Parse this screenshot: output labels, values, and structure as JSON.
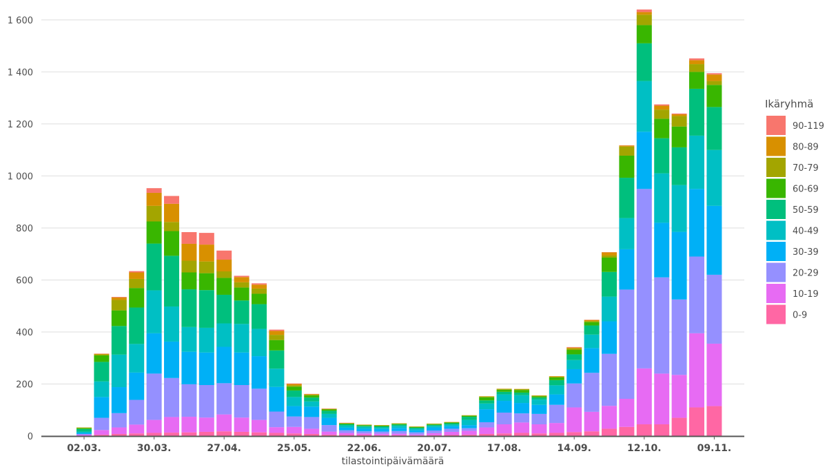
{
  "chart_data": {
    "type": "bar",
    "stacked": true,
    "xlabel": "tilastointipäivämäärä",
    "ylabel": "",
    "ylim": [
      0,
      1650
    ],
    "y_ticks": [
      0,
      200,
      400,
      600,
      800,
      1000,
      1200,
      1400,
      1600
    ],
    "y_tick_labels": [
      "0",
      "200",
      "400",
      "600",
      "800",
      "1 000",
      "1 200",
      "1 400",
      "1 600"
    ],
    "x_ticks": [
      {
        "label": "02.03.",
        "category_index": 0
      },
      {
        "label": "30.03.",
        "category_index": 4
      },
      {
        "label": "27.04.",
        "category_index": 8
      },
      {
        "label": "25.05.",
        "category_index": 12
      },
      {
        "label": "22.06.",
        "category_index": 16
      },
      {
        "label": "20.07.",
        "category_index": 20
      },
      {
        "label": "17.08.",
        "category_index": 24
      },
      {
        "label": "14.09.",
        "category_index": 28
      },
      {
        "label": "12.10.",
        "category_index": 32
      },
      {
        "label": "09.11.",
        "category_index": 36
      }
    ],
    "grid": true,
    "legend": {
      "title": "Ikäryhmä",
      "placement": "right"
    },
    "categories": [
      "02.03.",
      "09.03.",
      "16.03.",
      "23.03.",
      "30.03.",
      "06.04.",
      "13.04.",
      "20.04.",
      "27.04.",
      "04.05.",
      "11.05.",
      "18.05.",
      "25.05.",
      "01.06.",
      "08.06.",
      "15.06.",
      "22.06.",
      "29.06.",
      "06.07.",
      "13.07.",
      "20.07.",
      "27.07.",
      "03.08.",
      "10.08.",
      "17.08.",
      "24.08.",
      "31.08.",
      "07.09.",
      "14.09.",
      "21.09.",
      "28.09.",
      "05.10.",
      "12.10.",
      "19.10.",
      "26.10.",
      "02.11.",
      "09.11."
    ],
    "series": [
      {
        "name": "0-9",
        "color": "#ff67a4",
        "values": [
          1,
          5,
          8,
          10,
          12,
          13,
          14,
          16,
          18,
          16,
          14,
          12,
          10,
          8,
          5,
          4,
          4,
          3,
          3,
          2,
          3,
          4,
          5,
          8,
          10,
          12,
          10,
          12,
          15,
          18,
          28,
          35,
          45,
          45,
          70,
          110,
          115
        ]
      },
      {
        "name": "10-19",
        "color": "#e76bf3",
        "values": [
          3,
          18,
          25,
          34,
          50,
          60,
          60,
          55,
          65,
          55,
          48,
          22,
          25,
          20,
          12,
          8,
          6,
          6,
          6,
          4,
          8,
          12,
          15,
          25,
          35,
          40,
          35,
          38,
          95,
          75,
          88,
          108,
          215,
          195,
          165,
          285,
          240
        ]
      },
      {
        "name": "20-29",
        "color": "#9590ff",
        "values": [
          4,
          47,
          55,
          95,
          178,
          150,
          125,
          125,
          120,
          125,
          120,
          60,
          40,
          45,
          25,
          10,
          8,
          8,
          10,
          8,
          10,
          12,
          10,
          20,
          45,
          35,
          40,
          70,
          92,
          150,
          200,
          420,
          690,
          370,
          290,
          295,
          265
        ]
      },
      {
        "name": "30-39",
        "color": "#00b0f6",
        "values": [
          4,
          80,
          100,
          105,
          155,
          140,
          125,
          125,
          140,
          125,
          125,
          95,
          40,
          40,
          28,
          10,
          10,
          10,
          12,
          8,
          12,
          10,
          12,
          50,
          45,
          40,
          35,
          40,
          55,
          95,
          125,
          155,
          220,
          210,
          260,
          260,
          265
        ]
      },
      {
        "name": "40-49",
        "color": "#00bfc4",
        "values": [
          5,
          60,
          125,
          110,
          165,
          135,
          95,
          95,
          90,
          110,
          105,
          70,
          35,
          20,
          15,
          8,
          7,
          6,
          8,
          6,
          6,
          6,
          20,
          22,
          25,
          30,
          20,
          35,
          35,
          52,
          95,
          120,
          195,
          190,
          180,
          205,
          215
        ]
      },
      {
        "name": "50-59",
        "color": "#00bf7d",
        "values": [
          10,
          75,
          110,
          140,
          180,
          195,
          145,
          145,
          110,
          90,
          95,
          70,
          25,
          15,
          12,
          5,
          4,
          4,
          5,
          4,
          4,
          5,
          12,
          12,
          10,
          10,
          8,
          20,
          22,
          35,
          95,
          155,
          145,
          135,
          145,
          180,
          165
        ]
      },
      {
        "name": "60-69",
        "color": "#39b600",
        "values": [
          4,
          25,
          60,
          75,
          85,
          95,
          65,
          65,
          65,
          50,
          40,
          40,
          15,
          8,
          5,
          3,
          3,
          3,
          3,
          3,
          3,
          3,
          4,
          12,
          8,
          10,
          5,
          10,
          17,
          13,
          55,
          85,
          70,
          75,
          80,
          65,
          85
        ]
      },
      {
        "name": "70-79",
        "color": "#a3a500",
        "values": [
          1,
          4,
          40,
          35,
          60,
          35,
          45,
          45,
          25,
          20,
          20,
          20,
          5,
          3,
          2,
          1,
          1,
          1,
          1,
          1,
          1,
          1,
          1,
          3,
          3,
          3,
          2,
          3,
          6,
          4,
          8,
          35,
          40,
          35,
          40,
          30,
          15
        ]
      },
      {
        "name": "80-89",
        "color": "#d89000",
        "values": [
          1,
          2,
          10,
          25,
          50,
          70,
          65,
          65,
          45,
          20,
          15,
          15,
          5,
          2,
          1,
          1,
          1,
          1,
          1,
          1,
          1,
          1,
          1,
          1,
          1,
          1,
          1,
          2,
          3,
          4,
          12,
          4,
          10,
          15,
          7,
          15,
          25
        ]
      },
      {
        "name": "90-119",
        "color": "#f8766d",
        "values": [
          0,
          1,
          2,
          5,
          18,
          30,
          45,
          45,
          35,
          5,
          5,
          5,
          2,
          1,
          1,
          1,
          0,
          0,
          0,
          0,
          0,
          0,
          0,
          0,
          0,
          0,
          0,
          0,
          2,
          1,
          1,
          1,
          10,
          5,
          3,
          7,
          5
        ]
      }
    ]
  }
}
